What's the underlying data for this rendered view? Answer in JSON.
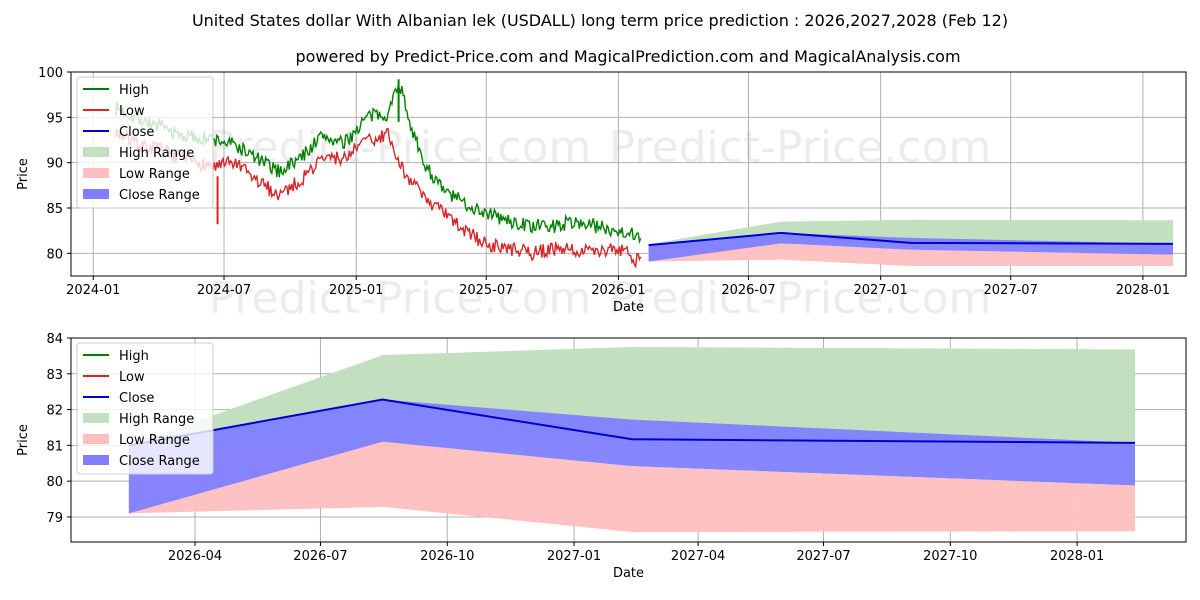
{
  "title": "United States dollar With Albanian lek (USDALL) long term price prediction : 2026,2027,2028 (Feb 12)",
  "subtitle": "powered by Predict-Price.com and MagicalPrediction.com and MagicalAnalysis.com",
  "watermark": "Predict-Price.com",
  "colors": {
    "high": "#008000",
    "low": "#d62728",
    "close": "#0000cc",
    "high_range": "#c2dfc0",
    "low_range": "#ffbfbf",
    "close_range": "#8080ff"
  },
  "legend": {
    "items": [
      "High",
      "Low",
      "Close",
      "High Range",
      "Low Range",
      "Close Range"
    ],
    "position": "top-left"
  },
  "chart_data": [
    {
      "type": "line",
      "name": "history-and-forecast",
      "xlabel": "Date",
      "ylabel": "Price",
      "ylim": [
        77.5,
        100
      ],
      "xlim": [
        "2023-12-01",
        "2028-03-01"
      ],
      "xticks": [
        "2024-01",
        "2024-07",
        "2025-01",
        "2025-07",
        "2026-01",
        "2026-07",
        "2027-01",
        "2027-07",
        "2028-01"
      ],
      "yticks": [
        80,
        85,
        90,
        95,
        100
      ],
      "grid": true,
      "history": {
        "dates": [
          "2024-02-01",
          "2024-03-01",
          "2024-04-01",
          "2024-05-01",
          "2024-06-20",
          "2024-07-15",
          "2024-08-15",
          "2024-09-15",
          "2024-10-15",
          "2024-11-15",
          "2024-12-15",
          "2025-01-15",
          "2025-02-15",
          "2025-03-01",
          "2025-04-01",
          "2025-05-01",
          "2025-06-01",
          "2025-07-01",
          "2025-08-01",
          "2025-09-01",
          "2025-10-01",
          "2025-11-01",
          "2025-12-01",
          "2026-01-01",
          "2026-02-01"
        ],
        "high": [
          96.0,
          95.0,
          94.0,
          93.0,
          92.5,
          92.0,
          90.5,
          89.0,
          90.5,
          93.0,
          92.0,
          95.0,
          95.5,
          99.0,
          90.5,
          87.0,
          85.5,
          84.5,
          83.5,
          83.0,
          83.0,
          83.5,
          83.0,
          82.5,
          82.0
        ],
        "low": [
          93.5,
          92.0,
          91.5,
          90.5,
          89.5,
          90.0,
          88.0,
          86.5,
          88.0,
          90.5,
          90.5,
          92.5,
          93.0,
          90.0,
          86.5,
          84.5,
          82.5,
          81.0,
          80.5,
          80.0,
          80.5,
          80.5,
          80.0,
          80.5,
          79.0
        ],
        "low_spike": {
          "date": "2024-06-22",
          "value": 83.2
        },
        "high_spike": {
          "date": "2025-03-01",
          "value": 99.2
        }
      },
      "forecast": {
        "dates": [
          "2026-02-12",
          "2026-08-15",
          "2027-02-12",
          "2028-02-12"
        ],
        "close": [
          80.9,
          82.25,
          81.15,
          81.05
        ],
        "high_range": [
          [
            79.1,
            81.0
          ],
          [
            81.0,
            83.5
          ],
          [
            81.15,
            83.7
          ],
          [
            81.05,
            83.65
          ]
        ],
        "low_range": [
          [
            79.1,
            81.0
          ],
          [
            79.3,
            81.1
          ],
          [
            78.6,
            80.4
          ],
          [
            78.6,
            79.85
          ]
        ],
        "close_range": [
          [
            79.1,
            81.0
          ],
          [
            81.1,
            82.25
          ],
          [
            80.4,
            81.7
          ],
          [
            79.85,
            81.05
          ]
        ]
      }
    },
    {
      "type": "line",
      "name": "forecast-zoom",
      "xlabel": "Date",
      "ylabel": "Price",
      "ylim": [
        78.3,
        84
      ],
      "xlim": [
        "2026-01-01",
        "2028-03-20"
      ],
      "xticks": [
        "2026-04",
        "2026-07",
        "2026-10",
        "2027-01",
        "2027-04",
        "2027-07",
        "2027-10",
        "2028-01"
      ],
      "yticks": [
        79,
        80,
        81,
        82,
        83,
        84
      ],
      "grid": true,
      "forecast": {
        "dates": [
          "2026-02-12",
          "2026-08-15",
          "2027-02-12",
          "2028-02-12"
        ],
        "close": [
          81.0,
          82.28,
          81.17,
          81.07
        ],
        "high_range": [
          [
            79.1,
            81.0
          ],
          [
            81.1,
            83.52
          ],
          [
            81.17,
            83.75
          ],
          [
            81.07,
            83.68
          ]
        ],
        "low_range": [
          [
            79.1,
            81.0
          ],
          [
            79.28,
            81.1
          ],
          [
            78.58,
            80.42
          ],
          [
            78.6,
            79.88
          ]
        ],
        "close_range": [
          [
            79.1,
            81.0
          ],
          [
            81.1,
            82.28
          ],
          [
            80.42,
            81.72
          ],
          [
            79.88,
            81.07
          ]
        ]
      }
    }
  ]
}
